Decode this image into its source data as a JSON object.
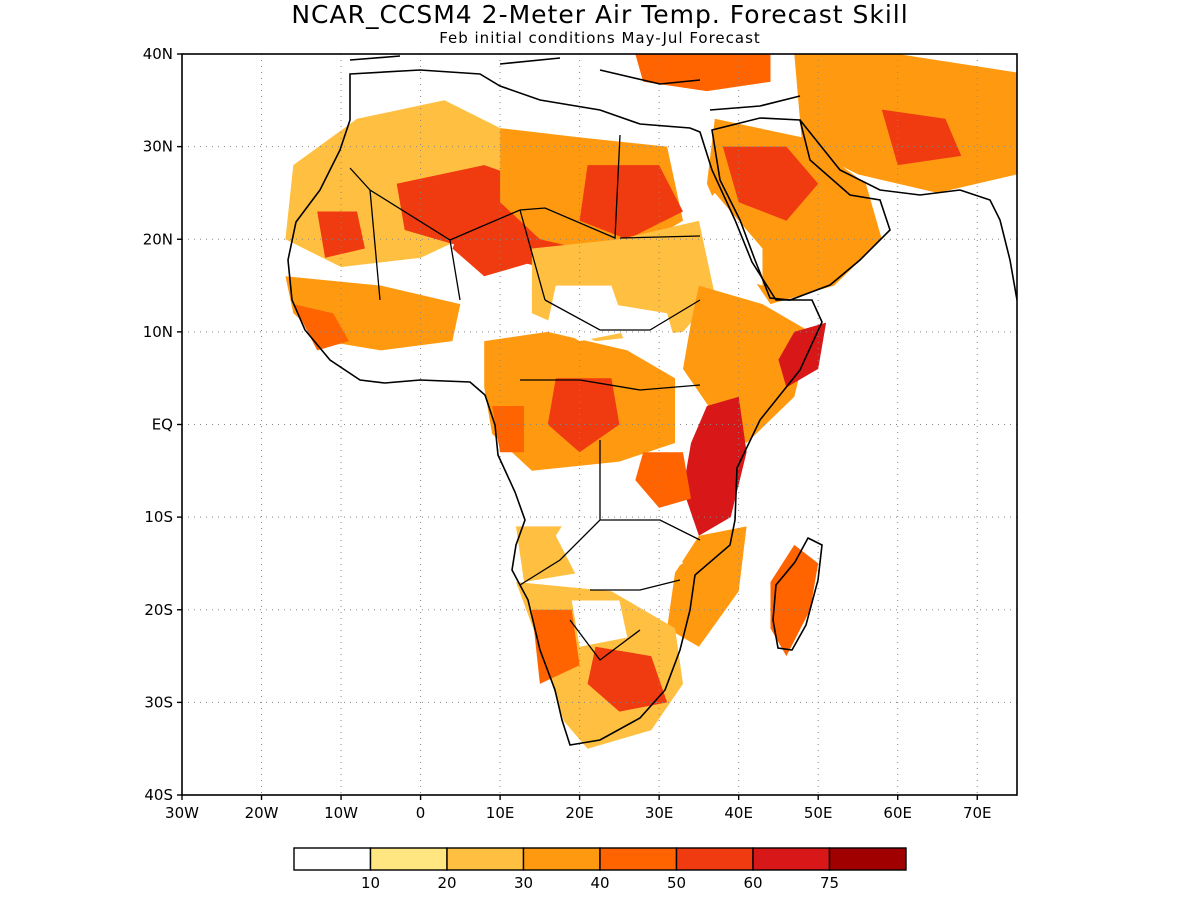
{
  "title": "NCAR_CCSM4 2-Meter Air Temp. Forecast Skill",
  "subtitle": "Feb initial conditions  May-Jul Forecast",
  "map": {
    "lon_range": [
      -30,
      75
    ],
    "lat_range": [
      -40,
      40
    ],
    "lat_ticks": [
      {
        "lat": 40,
        "label": "40N"
      },
      {
        "lat": 30,
        "label": "30N"
      },
      {
        "lat": 20,
        "label": "20N"
      },
      {
        "lat": 10,
        "label": "10N"
      },
      {
        "lat": 0,
        "label": "EQ"
      },
      {
        "lat": -10,
        "label": "10S"
      },
      {
        "lat": -20,
        "label": "20S"
      },
      {
        "lat": -30,
        "label": "30S"
      },
      {
        "lat": -40,
        "label": "40S"
      }
    ],
    "lon_ticks": [
      {
        "lon": -30,
        "label": "30W"
      },
      {
        "lon": -20,
        "label": "20W"
      },
      {
        "lon": -10,
        "label": "10W"
      },
      {
        "lon": 0,
        "label": "0"
      },
      {
        "lon": 10,
        "label": "10E"
      },
      {
        "lon": 20,
        "label": "20E"
      },
      {
        "lon": 30,
        "label": "30E"
      },
      {
        "lon": 40,
        "label": "40E"
      },
      {
        "lon": 50,
        "label": "50E"
      },
      {
        "lon": 60,
        "label": "60E"
      },
      {
        "lon": 70,
        "label": "70E"
      }
    ],
    "grid": true,
    "skill_regions": [
      {
        "name": "sahara-west",
        "level": 2,
        "pts": [
          [
            -16,
            28
          ],
          [
            -8,
            33
          ],
          [
            3,
            35
          ],
          [
            10,
            32
          ],
          [
            10,
            22
          ],
          [
            0,
            18
          ],
          [
            -10,
            17
          ],
          [
            -17,
            20
          ]
        ]
      },
      {
        "name": "sahara-core",
        "level": 5,
        "pts": [
          [
            -3,
            26
          ],
          [
            8,
            28
          ],
          [
            18,
            25
          ],
          [
            22,
            21
          ],
          [
            15,
            17
          ],
          [
            6,
            19
          ],
          [
            -2,
            21
          ]
        ]
      },
      {
        "name": "niger-hot",
        "level": 5,
        "pts": [
          [
            6,
            23
          ],
          [
            14,
            24
          ],
          [
            16,
            18
          ],
          [
            8,
            16
          ],
          [
            4,
            19
          ]
        ]
      },
      {
        "name": "mauritania-spot",
        "level": 5,
        "pts": [
          [
            -13,
            23
          ],
          [
            -8,
            23
          ],
          [
            -7,
            19
          ],
          [
            -12,
            18
          ]
        ]
      },
      {
        "name": "libya-egypt",
        "level": 3,
        "pts": [
          [
            10,
            32
          ],
          [
            20,
            31
          ],
          [
            31,
            30
          ],
          [
            33,
            22
          ],
          [
            25,
            18
          ],
          [
            15,
            20
          ],
          [
            10,
            24
          ]
        ]
      },
      {
        "name": "egypt-hot",
        "level": 5,
        "pts": [
          [
            21,
            28
          ],
          [
            30,
            28
          ],
          [
            33,
            23
          ],
          [
            26,
            20
          ],
          [
            20,
            22
          ]
        ]
      },
      {
        "name": "sahel-west",
        "level": 3,
        "pts": [
          [
            -17,
            16
          ],
          [
            -5,
            15
          ],
          [
            5,
            13
          ],
          [
            4,
            9
          ],
          [
            -5,
            8
          ],
          [
            -12,
            9
          ],
          [
            -16,
            12
          ]
        ]
      },
      {
        "name": "westafrica-coast",
        "level": 4,
        "pts": [
          [
            -16,
            13
          ],
          [
            -11,
            12
          ],
          [
            -9,
            9
          ],
          [
            -13,
            8
          ]
        ]
      },
      {
        "name": "chad-sudan",
        "level": 2,
        "pts": [
          [
            14,
            19
          ],
          [
            25,
            20
          ],
          [
            35,
            22
          ],
          [
            37,
            14
          ],
          [
            33,
            10
          ],
          [
            22,
            9
          ],
          [
            14,
            12
          ]
        ]
      },
      {
        "name": "central-africa",
        "level": 3,
        "pts": [
          [
            8,
            9
          ],
          [
            16,
            10
          ],
          [
            26,
            8
          ],
          [
            32,
            5
          ],
          [
            32,
            -2
          ],
          [
            25,
            -4
          ],
          [
            14,
            -5
          ],
          [
            9,
            -1
          ],
          [
            8,
            4
          ]
        ]
      },
      {
        "name": "congo-hot",
        "level": 5,
        "pts": [
          [
            17,
            5
          ],
          [
            24,
            5
          ],
          [
            25,
            0
          ],
          [
            20,
            -3
          ],
          [
            16,
            0
          ]
        ]
      },
      {
        "name": "gabon-hot",
        "level": 4,
        "pts": [
          [
            9,
            2
          ],
          [
            13,
            2
          ],
          [
            13,
            -3
          ],
          [
            10,
            -3
          ]
        ]
      },
      {
        "name": "ethiopia-kenya",
        "level": 3,
        "pts": [
          [
            35,
            15
          ],
          [
            43,
            13
          ],
          [
            49,
            10
          ],
          [
            47,
            3
          ],
          [
            41,
            -2
          ],
          [
            37,
            1
          ],
          [
            33,
            6
          ],
          [
            34,
            11
          ]
        ]
      },
      {
        "name": "somalia-hot",
        "level": 6,
        "pts": [
          [
            47,
            10
          ],
          [
            51,
            11
          ],
          [
            50,
            6
          ],
          [
            46,
            4
          ],
          [
            45,
            7
          ]
        ]
      },
      {
        "name": "eastafrica-hot",
        "level": 6,
        "pts": [
          [
            36,
            2
          ],
          [
            40,
            3
          ],
          [
            41,
            -3
          ],
          [
            39,
            -10
          ],
          [
            35,
            -12
          ],
          [
            33,
            -7
          ],
          [
            34,
            -2
          ]
        ]
      },
      {
        "name": "lake-region",
        "level": 4,
        "pts": [
          [
            28,
            -3
          ],
          [
            33,
            -3
          ],
          [
            34,
            -8
          ],
          [
            30,
            -9
          ],
          [
            27,
            -6
          ]
        ]
      },
      {
        "name": "arabia",
        "level": 3,
        "pts": [
          [
            37,
            33
          ],
          [
            48,
            31
          ],
          [
            56,
            26
          ],
          [
            58,
            20
          ],
          [
            52,
            15
          ],
          [
            44,
            13
          ],
          [
            40,
            18
          ],
          [
            36,
            26
          ]
        ]
      },
      {
        "name": "arabia-hot",
        "level": 5,
        "pts": [
          [
            38,
            30
          ],
          [
            46,
            30
          ],
          [
            50,
            26
          ],
          [
            46,
            22
          ],
          [
            40,
            24
          ]
        ]
      },
      {
        "name": "iran",
        "level": 3,
        "pts": [
          [
            47,
            40
          ],
          [
            60,
            40
          ],
          [
            75,
            38
          ],
          [
            75,
            27
          ],
          [
            65,
            25
          ],
          [
            55,
            27
          ],
          [
            48,
            30
          ]
        ]
      },
      {
        "name": "iran-hot",
        "level": 5,
        "pts": [
          [
            58,
            34
          ],
          [
            66,
            33
          ],
          [
            68,
            29
          ],
          [
            60,
            28
          ]
        ]
      },
      {
        "name": "turkey",
        "level": 4,
        "pts": [
          [
            27,
            40
          ],
          [
            44,
            40
          ],
          [
            44,
            37
          ],
          [
            36,
            36
          ],
          [
            28,
            37
          ]
        ]
      },
      {
        "name": "mozambique",
        "level": 3,
        "pts": [
          [
            35,
            -12
          ],
          [
            41,
            -11
          ],
          [
            40,
            -18
          ],
          [
            35,
            -24
          ],
          [
            31,
            -22
          ],
          [
            32,
            -16
          ]
        ]
      },
      {
        "name": "southern-africa",
        "level": 2,
        "pts": [
          [
            12,
            -17
          ],
          [
            24,
            -18
          ],
          [
            32,
            -22
          ],
          [
            33,
            -28
          ],
          [
            29,
            -33
          ],
          [
            21,
            -35
          ],
          [
            18,
            -32
          ],
          [
            15,
            -24
          ]
        ]
      },
      {
        "name": "namibia-hot",
        "level": 4,
        "pts": [
          [
            14,
            -20
          ],
          [
            19,
            -20
          ],
          [
            20,
            -26
          ],
          [
            15,
            -28
          ]
        ]
      },
      {
        "name": "southafrica-hot",
        "level": 5,
        "pts": [
          [
            22,
            -24
          ],
          [
            29,
            -25
          ],
          [
            31,
            -30
          ],
          [
            25,
            -31
          ],
          [
            21,
            -28
          ]
        ]
      },
      {
        "name": "angola-patch",
        "level": 2,
        "pts": [
          [
            12,
            -11
          ],
          [
            18,
            -11
          ],
          [
            20,
            -16
          ],
          [
            13,
            -17
          ]
        ]
      },
      {
        "name": "madagascar",
        "level": 4,
        "pts": [
          [
            47,
            -13
          ],
          [
            50,
            -15
          ],
          [
            49,
            -20
          ],
          [
            46,
            -25
          ],
          [
            44,
            -22
          ],
          [
            44,
            -17
          ]
        ]
      }
    ],
    "white_gaps": [
      {
        "name": "chad-gap",
        "pts": [
          [
            17,
            15
          ],
          [
            24,
            15
          ],
          [
            26,
            10
          ],
          [
            20,
            9
          ],
          [
            16,
            11
          ]
        ]
      },
      {
        "name": "sudan-gap",
        "pts": [
          [
            24,
            13
          ],
          [
            31,
            12
          ],
          [
            32,
            9
          ],
          [
            26,
            8
          ]
        ]
      },
      {
        "name": "zambia-gap",
        "pts": [
          [
            20,
            -8
          ],
          [
            30,
            -9
          ],
          [
            33,
            -15
          ],
          [
            27,
            -18
          ],
          [
            20,
            -17
          ],
          [
            17,
            -12
          ]
        ]
      },
      {
        "name": "sea-gap",
        "pts": [
          [
            37,
            25
          ],
          [
            43,
            19
          ],
          [
            43,
            15
          ],
          [
            39,
            16
          ],
          [
            35,
            23
          ]
        ]
      },
      {
        "name": "kalahari-gap",
        "pts": [
          [
            19,
            -19
          ],
          [
            25,
            -19
          ],
          [
            26,
            -23
          ],
          [
            20,
            -24
          ]
        ]
      }
    ]
  },
  "colorbar": {
    "tick_labels": [
      "10",
      "20",
      "30",
      "40",
      "50",
      "60",
      "75"
    ],
    "colors": [
      "#ffffff",
      "#ffe680",
      "#ffbf40",
      "#ff9a10",
      "#ff6400",
      "#f03a10",
      "#d81818",
      "#a00000"
    ]
  }
}
